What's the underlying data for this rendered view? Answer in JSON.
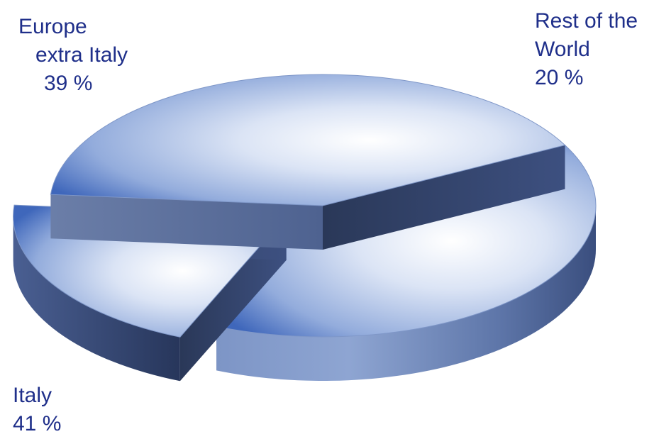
{
  "chart_data": {
    "type": "pie",
    "style": "3d-exploded",
    "slices": [
      {
        "label_lines": [
          "Europe",
          "extra Italy"
        ],
        "value": 39,
        "value_text": "39 %"
      },
      {
        "label_lines": [
          "Rest of the",
          "World"
        ],
        "value": 20,
        "value_text": "20 %"
      },
      {
        "label_lines": [
          "Italy"
        ],
        "value": 41,
        "value_text": "41 %"
      }
    ],
    "colors": {
      "top_light": "#ffffff",
      "top_dark": "#3f67bb",
      "side_light": "#8fa5cf",
      "side_dark": "#3a4e7e",
      "cut_face": "#2b3a5f",
      "label_text": "#1f2f8a"
    }
  }
}
